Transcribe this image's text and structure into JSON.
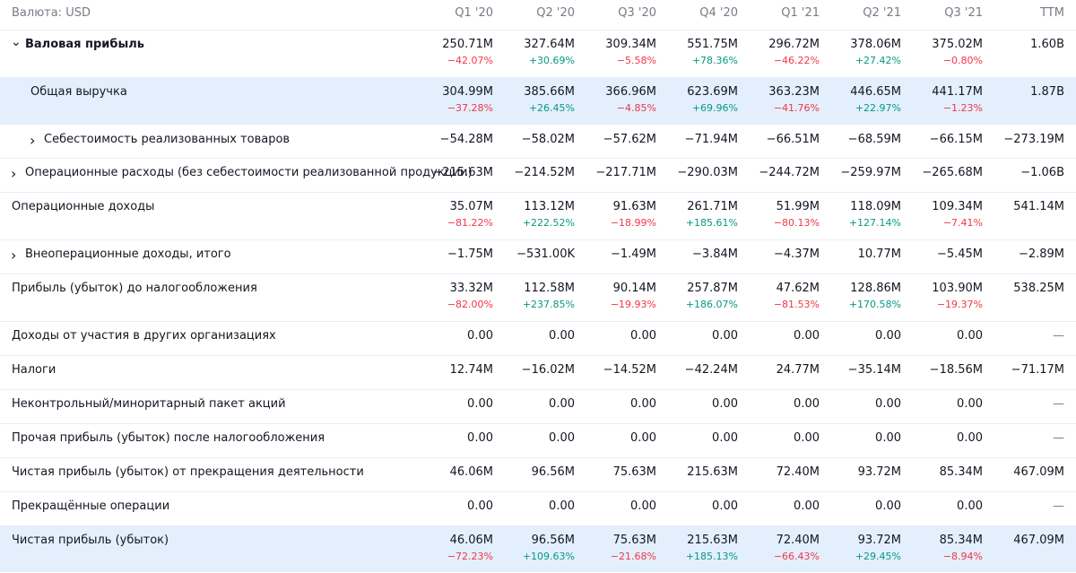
{
  "header": {
    "currency_label": "Валюта: USD",
    "periods": [
      "Q1 '20",
      "Q2 '20",
      "Q3 '20",
      "Q4 '20",
      "Q1 '21",
      "Q2 '21",
      "Q3 '21",
      "TTM"
    ]
  },
  "colors": {
    "negative": "#f23645",
    "positive": "#089981",
    "highlight": "#e3effd"
  },
  "rows": [
    {
      "label": "Валовая прибыль",
      "bold": true,
      "chevron": "chevron-down-icon",
      "values": [
        "250.71M",
        "327.64M",
        "309.34M",
        "551.75M",
        "296.72M",
        "378.06M",
        "375.02M",
        "1.60B"
      ],
      "changes": [
        "−42.07%",
        "+30.69%",
        "−5.58%",
        "+78.36%",
        "−46.22%",
        "+27.42%",
        "−0.80%",
        ""
      ]
    },
    {
      "label": "Общая выручка",
      "highlight": true,
      "values": [
        "304.99M",
        "385.66M",
        "366.96M",
        "623.69M",
        "363.23M",
        "446.65M",
        "441.17M",
        "1.87B"
      ],
      "changes": [
        "−37.28%",
        "+26.45%",
        "−4.85%",
        "+69.96%",
        "−41.76%",
        "+22.97%",
        "−1.23%",
        ""
      ]
    },
    {
      "label": "Себестоимость реализованных товаров",
      "chevron": "chevron-right-icon",
      "indent": true,
      "values": [
        "−54.28M",
        "−58.02M",
        "−57.62M",
        "−71.94M",
        "−66.51M",
        "−68.59M",
        "−66.15M",
        "−273.19M"
      ]
    },
    {
      "label": "Операционные расходы (без себестоимости реализованной продукции)",
      "chevron": "chevron-right-icon",
      "values": [
        "−215.63M",
        "−214.52M",
        "−217.71M",
        "−290.03M",
        "−244.72M",
        "−259.97M",
        "−265.68M",
        "−1.06B"
      ]
    },
    {
      "label": "Операционные доходы",
      "values": [
        "35.07M",
        "113.12M",
        "91.63M",
        "261.71M",
        "51.99M",
        "118.09M",
        "109.34M",
        "541.14M"
      ],
      "changes": [
        "−81.22%",
        "+222.52%",
        "−18.99%",
        "+185.61%",
        "−80.13%",
        "+127.14%",
        "−7.41%",
        ""
      ]
    },
    {
      "label": "Внеоперационные доходы, итого",
      "chevron": "chevron-right-icon",
      "values": [
        "−1.75M",
        "−531.00K",
        "−1.49M",
        "−3.84M",
        "−4.37M",
        "10.77M",
        "−5.45M",
        "−2.89M"
      ]
    },
    {
      "label": "Прибыль (убыток) до налогообложения",
      "values": [
        "33.32M",
        "112.58M",
        "90.14M",
        "257.87M",
        "47.62M",
        "128.86M",
        "103.90M",
        "538.25M"
      ],
      "changes": [
        "−82.00%",
        "+237.85%",
        "−19.93%",
        "+186.07%",
        "−81.53%",
        "+170.58%",
        "−19.37%",
        ""
      ]
    },
    {
      "label": "Доходы от участия в других организациях",
      "values": [
        "0.00",
        "0.00",
        "0.00",
        "0.00",
        "0.00",
        "0.00",
        "0.00",
        "—"
      ]
    },
    {
      "label": "Налоги",
      "values": [
        "12.74M",
        "−16.02M",
        "−14.52M",
        "−42.24M",
        "24.77M",
        "−35.14M",
        "−18.56M",
        "−71.17M"
      ]
    },
    {
      "label": "Неконтрольный/миноритарный пакет акций",
      "values": [
        "0.00",
        "0.00",
        "0.00",
        "0.00",
        "0.00",
        "0.00",
        "0.00",
        "—"
      ]
    },
    {
      "label": "Прочая прибыль (убыток) после налогообложения",
      "values": [
        "0.00",
        "0.00",
        "0.00",
        "0.00",
        "0.00",
        "0.00",
        "0.00",
        "—"
      ]
    },
    {
      "label": "Чистая прибыль (убыток) от прекращения деятельности",
      "values": [
        "46.06M",
        "96.56M",
        "75.63M",
        "215.63M",
        "72.40M",
        "93.72M",
        "85.34M",
        "467.09M"
      ]
    },
    {
      "label": "Прекращённые операции",
      "values": [
        "0.00",
        "0.00",
        "0.00",
        "0.00",
        "0.00",
        "0.00",
        "0.00",
        "—"
      ]
    },
    {
      "label": "Чистая прибыль (убыток)",
      "highlight": true,
      "values": [
        "46.06M",
        "96.56M",
        "75.63M",
        "215.63M",
        "72.40M",
        "93.72M",
        "85.34M",
        "467.09M"
      ],
      "changes": [
        "−72.23%",
        "+109.63%",
        "−21.68%",
        "+185.13%",
        "−66.43%",
        "+29.45%",
        "−8.94%",
        ""
      ]
    }
  ]
}
